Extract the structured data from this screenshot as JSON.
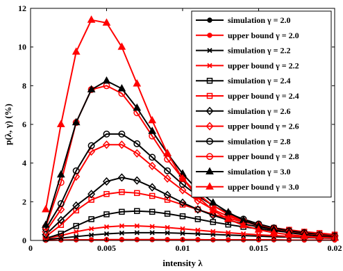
{
  "chart_data": {
    "type": "line",
    "xlabel": "intensity λ",
    "ylabel": "p(λ, γ) (%)",
    "xlim": [
      0,
      0.02
    ],
    "ylim": [
      0,
      12
    ],
    "xticks": [
      0,
      0.005,
      0.01,
      0.015,
      0.02
    ],
    "xtick_labels": [
      "0",
      "0.005",
      "0.01",
      "0.015",
      "0.02"
    ],
    "yticks": [
      0,
      2,
      4,
      6,
      8,
      10,
      12
    ],
    "ytick_labels": [
      "0",
      "2",
      "4",
      "6",
      "8",
      "10",
      "12"
    ],
    "grid": false,
    "legend_position": "top-right",
    "x": [
      0.001,
      0.002,
      0.003,
      0.004,
      0.005,
      0.006,
      0.007,
      0.008,
      0.009,
      0.01,
      0.011,
      0.012,
      0.013,
      0.014,
      0.015,
      0.016,
      0.017,
      0.018,
      0.019,
      0.02
    ],
    "series": [
      {
        "name": "simulation γ = 2.0",
        "color": "#000000",
        "marker": "dot",
        "values": [
          0.01,
          0.02,
          0.03,
          0.03,
          0.04,
          0.04,
          0.04,
          0.04,
          0.04,
          0.04,
          0.04,
          0.03,
          0.03,
          0.03,
          0.03,
          0.03,
          0.02,
          0.02,
          0.02,
          0.02
        ]
      },
      {
        "name": "upper bound γ = 2.0",
        "color": "#ff0000",
        "marker": "dot",
        "values": [
          0.01,
          0.02,
          0.03,
          0.03,
          0.04,
          0.04,
          0.04,
          0.04,
          0.04,
          0.04,
          0.04,
          0.03,
          0.03,
          0.03,
          0.03,
          0.03,
          0.02,
          0.02,
          0.02,
          0.02
        ]
      },
      {
        "name": "simulation γ = 2.2",
        "color": "#000000",
        "marker": "x",
        "values": [
          0.05,
          0.12,
          0.2,
          0.28,
          0.34,
          0.38,
          0.4,
          0.4,
          0.39,
          0.37,
          0.34,
          0.31,
          0.28,
          0.25,
          0.22,
          0.19,
          0.17,
          0.15,
          0.13,
          0.11
        ]
      },
      {
        "name": "upper bound γ = 2.2",
        "color": "#ff0000",
        "marker": "x",
        "values": [
          0.1,
          0.25,
          0.45,
          0.6,
          0.7,
          0.75,
          0.75,
          0.72,
          0.67,
          0.6,
          0.53,
          0.46,
          0.4,
          0.34,
          0.29,
          0.25,
          0.21,
          0.18,
          0.15,
          0.13
        ]
      },
      {
        "name": "simulation γ = 2.4",
        "color": "#000000",
        "marker": "square",
        "values": [
          0.1,
          0.35,
          0.75,
          1.1,
          1.35,
          1.48,
          1.52,
          1.48,
          1.38,
          1.25,
          1.1,
          0.95,
          0.82,
          0.7,
          0.6,
          0.5,
          0.42,
          0.35,
          0.3,
          0.25
        ]
      },
      {
        "name": "upper bound γ = 2.4",
        "color": "#ff0000",
        "marker": "square",
        "values": [
          0.2,
          0.8,
          1.55,
          2.1,
          2.4,
          2.5,
          2.45,
          2.3,
          2.1,
          1.85,
          1.6,
          1.35,
          1.15,
          0.95,
          0.8,
          0.65,
          0.55,
          0.45,
          0.38,
          0.3
        ]
      },
      {
        "name": "simulation γ = 2.6",
        "color": "#000000",
        "marker": "diamond",
        "values": [
          0.3,
          1.05,
          1.8,
          2.4,
          3.05,
          3.25,
          3.1,
          2.75,
          2.35,
          1.95,
          1.6,
          1.3,
          1.05,
          0.85,
          0.7,
          0.55,
          0.45,
          0.35,
          0.28,
          0.22
        ]
      },
      {
        "name": "upper bound γ = 2.6",
        "color": "#ff0000",
        "marker": "diamond",
        "values": [
          0.45,
          1.6,
          3.3,
          4.6,
          4.95,
          4.95,
          4.5,
          3.85,
          3.2,
          2.6,
          2.05,
          1.6,
          1.25,
          1.0,
          0.8,
          0.62,
          0.5,
          0.4,
          0.3,
          0.25
        ]
      },
      {
        "name": "simulation γ = 2.8",
        "color": "#000000",
        "marker": "circle",
        "values": [
          0.6,
          1.9,
          3.6,
          4.9,
          5.5,
          5.5,
          5.0,
          4.3,
          3.6,
          2.9,
          2.3,
          1.8,
          1.4,
          1.1,
          0.85,
          0.65,
          0.5,
          0.4,
          0.3,
          0.22
        ]
      },
      {
        "name": "upper bound γ = 2.8",
        "color": "#ff0000",
        "marker": "circle",
        "values": [
          0.7,
          3.0,
          6.1,
          7.8,
          8.0,
          7.6,
          6.6,
          5.4,
          4.2,
          3.2,
          2.4,
          1.8,
          1.35,
          1.0,
          0.75,
          0.55,
          0.42,
          0.32,
          0.25,
          0.18
        ]
      },
      {
        "name": "simulation γ = 3.0",
        "color": "#000000",
        "marker": "triangle",
        "values": [
          0.8,
          3.4,
          6.1,
          7.8,
          8.25,
          7.85,
          6.85,
          5.65,
          4.5,
          3.45,
          2.6,
          1.95,
          1.45,
          1.05,
          0.75,
          0.55,
          0.4,
          0.3,
          0.22,
          0.16
        ]
      },
      {
        "name": "upper bound γ = 3.0",
        "color": "#ff0000",
        "marker": "triangle",
        "values": [
          1.6,
          6.0,
          9.75,
          11.4,
          11.25,
          10.0,
          8.1,
          6.2,
          4.5,
          3.2,
          2.25,
          1.55,
          1.1,
          0.78,
          0.55,
          0.4,
          0.3,
          0.22,
          0.16,
          0.12
        ]
      }
    ]
  }
}
